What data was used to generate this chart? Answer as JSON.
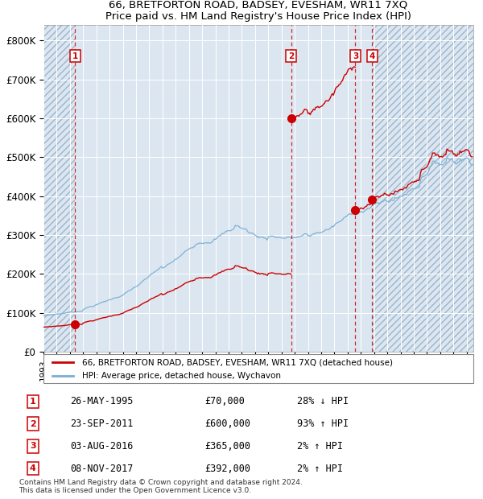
{
  "title": "66, BRETFORTON ROAD, BADSEY, EVESHAM, WR11 7XQ",
  "subtitle": "Price paid vs. HM Land Registry's House Price Index (HPI)",
  "bg_color": "#dce6f0",
  "grid_color": "#ffffff",
  "line_color_red": "#cc0000",
  "line_color_blue": "#7aafd4",
  "sale_marker_color": "#cc0000",
  "dashed_line_color": "#cc0000",
  "transactions": [
    {
      "num": 1,
      "date_str": "26-MAY-1995",
      "price": 70000,
      "hpi_pct": "28% ↓ HPI",
      "year_x": 1995.39
    },
    {
      "num": 2,
      "date_str": "23-SEP-2011",
      "price": 600000,
      "hpi_pct": "93% ↑ HPI",
      "year_x": 2011.72
    },
    {
      "num": 3,
      "date_str": "03-AUG-2016",
      "price": 365000,
      "hpi_pct": "2% ↑ HPI",
      "year_x": 2016.58
    },
    {
      "num": 4,
      "date_str": "08-NOV-2017",
      "price": 392000,
      "hpi_pct": "2% ↑ HPI",
      "year_x": 2017.85
    }
  ],
  "xlim": [
    1993.0,
    2025.5
  ],
  "ylim": [
    0,
    840000
  ],
  "yticks": [
    0,
    100000,
    200000,
    300000,
    400000,
    500000,
    600000,
    700000,
    800000
  ],
  "ytick_labels": [
    "£0",
    "£100K",
    "£200K",
    "£300K",
    "£400K",
    "£500K",
    "£600K",
    "£700K",
    "£800K"
  ],
  "legend_line1": "66, BRETFORTON ROAD, BADSEY, EVESHAM, WR11 7XQ (detached house)",
  "legend_line2": "HPI: Average price, detached house, Wychavon",
  "footnote": "Contains HM Land Registry data © Crown copyright and database right 2024.\nThis data is licensed under the Open Government Licence v3.0.",
  "table_rows": [
    [
      "1",
      "26-MAY-1995",
      "£70,000",
      "28% ↓ HPI"
    ],
    [
      "2",
      "23-SEP-2011",
      "£600,000",
      "93% ↑ HPI"
    ],
    [
      "3",
      "03-AUG-2016",
      "£365,000",
      "2% ↑ HPI"
    ],
    [
      "4",
      "08-NOV-2017",
      "£392,000",
      "2% ↑ HPI"
    ]
  ]
}
